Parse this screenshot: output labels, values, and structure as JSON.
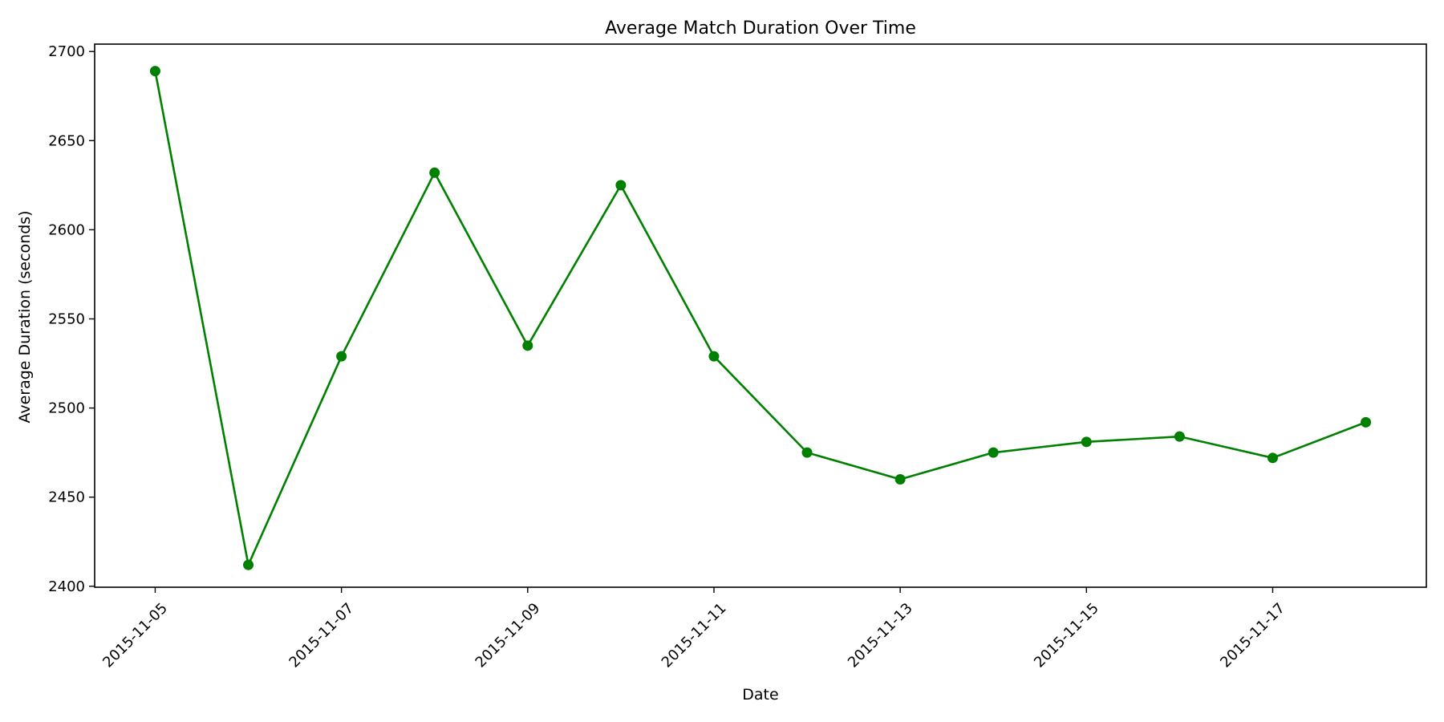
{
  "chart_data": {
    "type": "line",
    "title": "Average Match Duration Over Time",
    "xlabel": "Date",
    "ylabel": "Average Duration (seconds)",
    "x": [
      "2015-11-05",
      "2015-11-06",
      "2015-11-07",
      "2015-11-08",
      "2015-11-09",
      "2015-11-10",
      "2015-11-11",
      "2015-11-12",
      "2015-11-13",
      "2015-11-14",
      "2015-11-15",
      "2015-11-16",
      "2015-11-17",
      "2015-11-18"
    ],
    "x_ticks": [
      "2015-11-05",
      "2015-11-07",
      "2015-11-09",
      "2015-11-11",
      "2015-11-13",
      "2015-11-15",
      "2015-11-17"
    ],
    "y_ticks": [
      2400,
      2450,
      2500,
      2550,
      2600,
      2650,
      2700
    ],
    "ylim": [
      2400,
      2700
    ],
    "series": [
      {
        "values": [
          2689,
          2412,
          2529,
          2632,
          2535,
          2625,
          2529,
          2475,
          2460,
          2475,
          2481,
          2484,
          2472,
          2492
        ],
        "color": "#008000",
        "marker": "circle"
      }
    ],
    "grid": false,
    "legend": "none"
  }
}
